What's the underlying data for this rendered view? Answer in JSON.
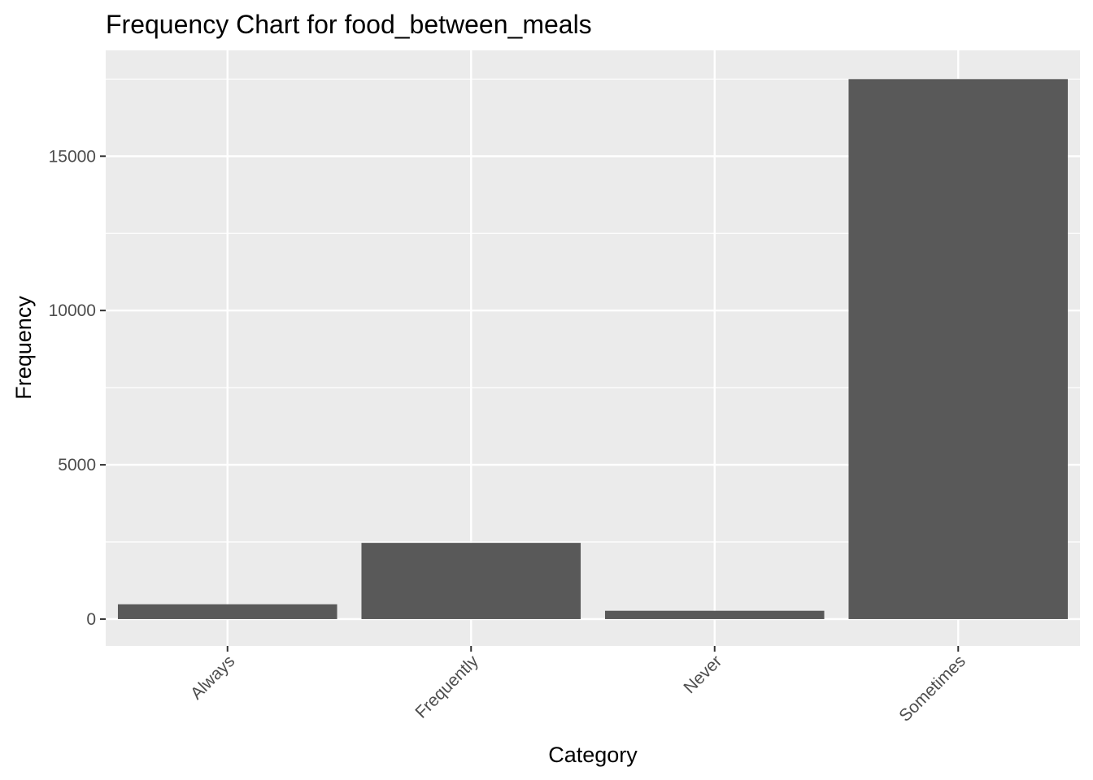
{
  "chart_data": {
    "type": "bar",
    "title": "Frequency Chart for food_between_meals",
    "xlabel": "Category",
    "ylabel": "Frequency",
    "categories": [
      "Always",
      "Frequently",
      "Never",
      "Sometimes"
    ],
    "values": [
      480,
      2470,
      270,
      17500
    ],
    "ylim": [
      -870,
      18430
    ],
    "yticks": [
      0,
      5000,
      10000,
      15000
    ],
    "ytick_labels": [
      "0",
      "5000",
      "10000",
      "15000"
    ],
    "grid": true,
    "legend": "none",
    "colors": {
      "panel": "#ebebeb",
      "grid": "#ffffff",
      "bar": "#595959",
      "tick_text": "#4d4d4d",
      "tick_mark": "#333333"
    }
  }
}
